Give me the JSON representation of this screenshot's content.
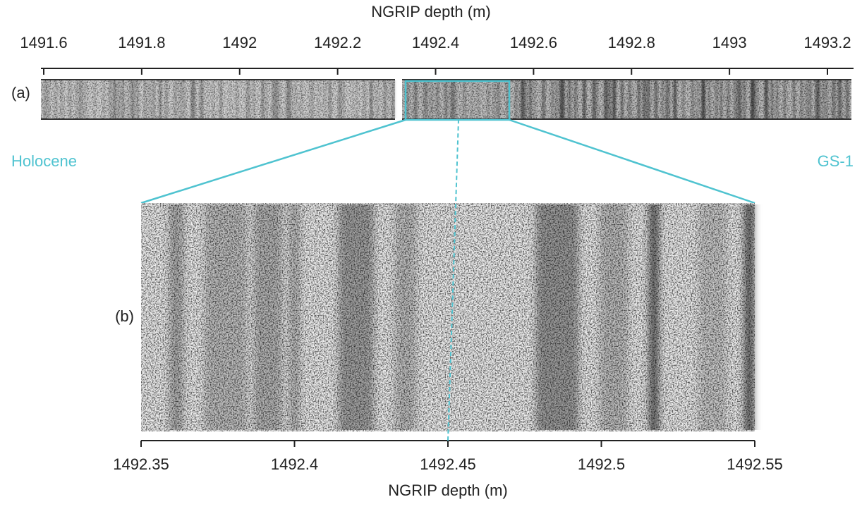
{
  "top_axis": {
    "title": "NGRIP depth (m)",
    "ticks": [
      1491.6,
      1491.8,
      1492,
      1492.2,
      1492.4,
      1492.6,
      1492.8,
      1493,
      1493.2
    ]
  },
  "bottom_axis": {
    "title": "NGRIP depth (m)",
    "ticks": [
      1492.35,
      1492.4,
      1492.45,
      1492.5,
      1492.55
    ]
  },
  "panels": {
    "a": "(a)",
    "b": "(b)"
  },
  "annotations": {
    "left": "Holocene",
    "right": "GS-1"
  }
}
